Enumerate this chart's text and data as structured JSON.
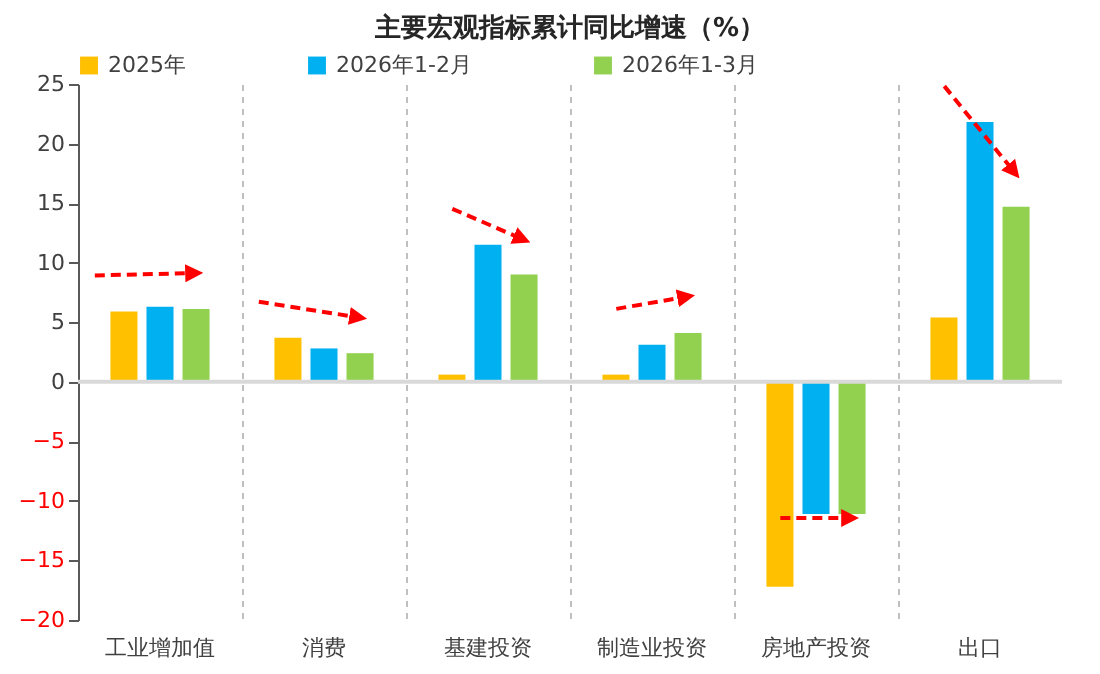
{
  "chart_data": {
    "type": "bar",
    "title": "主要宏观指标累计同比增速（%）",
    "categories": [
      "工业增加值",
      "消费",
      "基建投资",
      "制造业投资",
      "房地产投资",
      "出口"
    ],
    "series": [
      {
        "name": "2025年",
        "color": "#ffc000",
        "values": [
          5.9,
          3.7,
          0.6,
          0.6,
          -17.2,
          5.4
        ]
      },
      {
        "name": "2026年1-2月",
        "color": "#00b0f0",
        "values": [
          6.3,
          2.8,
          11.5,
          3.1,
          -11.1,
          21.8
        ]
      },
      {
        "name": "2026年1-3月",
        "color": "#92d050",
        "values": [
          6.1,
          2.4,
          9.0,
          4.1,
          -11.1,
          14.7
        ]
      }
    ],
    "ylim": [
      -20,
      25
    ],
    "yticks": [
      -20,
      -15,
      -10,
      -5,
      0,
      5,
      10,
      15,
      20,
      25
    ],
    "grid": "x",
    "legend": "top",
    "ref_lines": [
      {
        "axis": "y",
        "value": 0,
        "color": "#d9d9d9"
      }
    ]
  }
}
